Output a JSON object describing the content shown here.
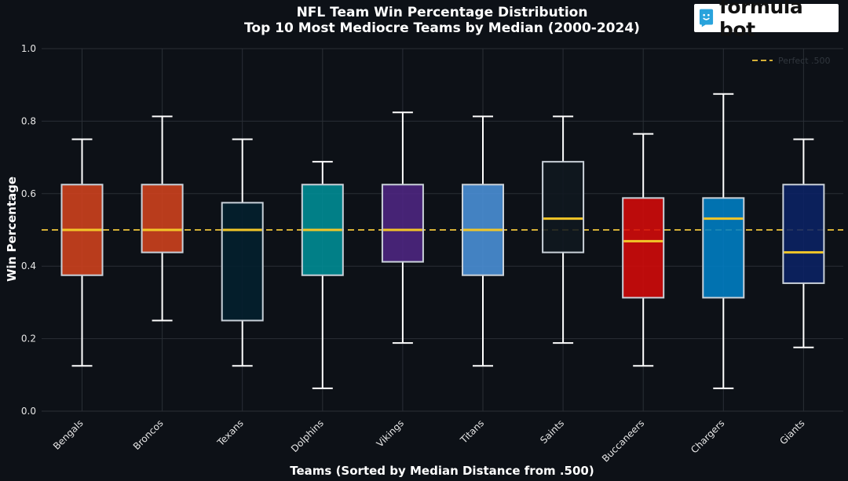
{
  "brand": {
    "name": "formula bot",
    "accent": "#29a3dc"
  },
  "chart_data": {
    "type": "box",
    "title": "NFL Team Win Percentage Distribution",
    "subtitle": "Top 10 Most Mediocre Teams by Median (2000-2024)",
    "xlabel": "Teams (Sorted by Median Distance from .500)",
    "ylabel": "Win Percentage",
    "ylim": [
      0,
      1
    ],
    "yticks": [
      "0.0",
      "0.2",
      "0.4",
      "0.6",
      "0.8",
      "1.0"
    ],
    "grid": true,
    "legend_position": "top-right",
    "reference_line": {
      "y": 0.5,
      "label": "Perfect .500",
      "color": "#d4af37",
      "style": "dashed"
    },
    "median_color": "#f2c628",
    "categories": [
      "Bengals",
      "Broncos",
      "Texans",
      "Dolphins",
      "Vikings",
      "Titans",
      "Saints",
      "Buccaneers",
      "Chargers",
      "Giants"
    ],
    "boxes": [
      {
        "team": "Bengals",
        "min": 0.125,
        "q1": 0.375,
        "median": 0.5,
        "q3": 0.625,
        "max": 0.75,
        "color": "#d2421e"
      },
      {
        "team": "Broncos",
        "min": 0.25,
        "q1": 0.438,
        "median": 0.5,
        "q3": 0.625,
        "max": 0.813,
        "color": "#d2421e"
      },
      {
        "team": "Texans",
        "min": 0.125,
        "q1": 0.25,
        "median": 0.5,
        "q3": 0.575,
        "max": 0.75,
        "color": "#03202f"
      },
      {
        "team": "Dolphins",
        "min": 0.063,
        "q1": 0.375,
        "median": 0.5,
        "q3": 0.625,
        "max": 0.688,
        "color": "#008e97"
      },
      {
        "team": "Vikings",
        "min": 0.188,
        "q1": 0.412,
        "median": 0.5,
        "q3": 0.625,
        "max": 0.824,
        "color": "#4f2683"
      },
      {
        "team": "Titans",
        "min": 0.125,
        "q1": 0.375,
        "median": 0.5,
        "q3": 0.625,
        "max": 0.813,
        "color": "#4b92db"
      },
      {
        "team": "Saints",
        "min": 0.188,
        "q1": 0.438,
        "median": 0.531,
        "q3": 0.688,
        "max": 0.813,
        "color": "#101820"
      },
      {
        "team": "Buccaneers",
        "min": 0.125,
        "q1": 0.313,
        "median": 0.469,
        "q3": 0.588,
        "max": 0.765,
        "color": "#d50a0a"
      },
      {
        "team": "Chargers",
        "min": 0.063,
        "q1": 0.313,
        "median": 0.531,
        "q3": 0.588,
        "max": 0.875,
        "color": "#0080c6"
      },
      {
        "team": "Giants",
        "min": 0.176,
        "q1": 0.353,
        "median": 0.438,
        "q3": 0.625,
        "max": 0.75,
        "color": "#0b2265"
      }
    ]
  }
}
